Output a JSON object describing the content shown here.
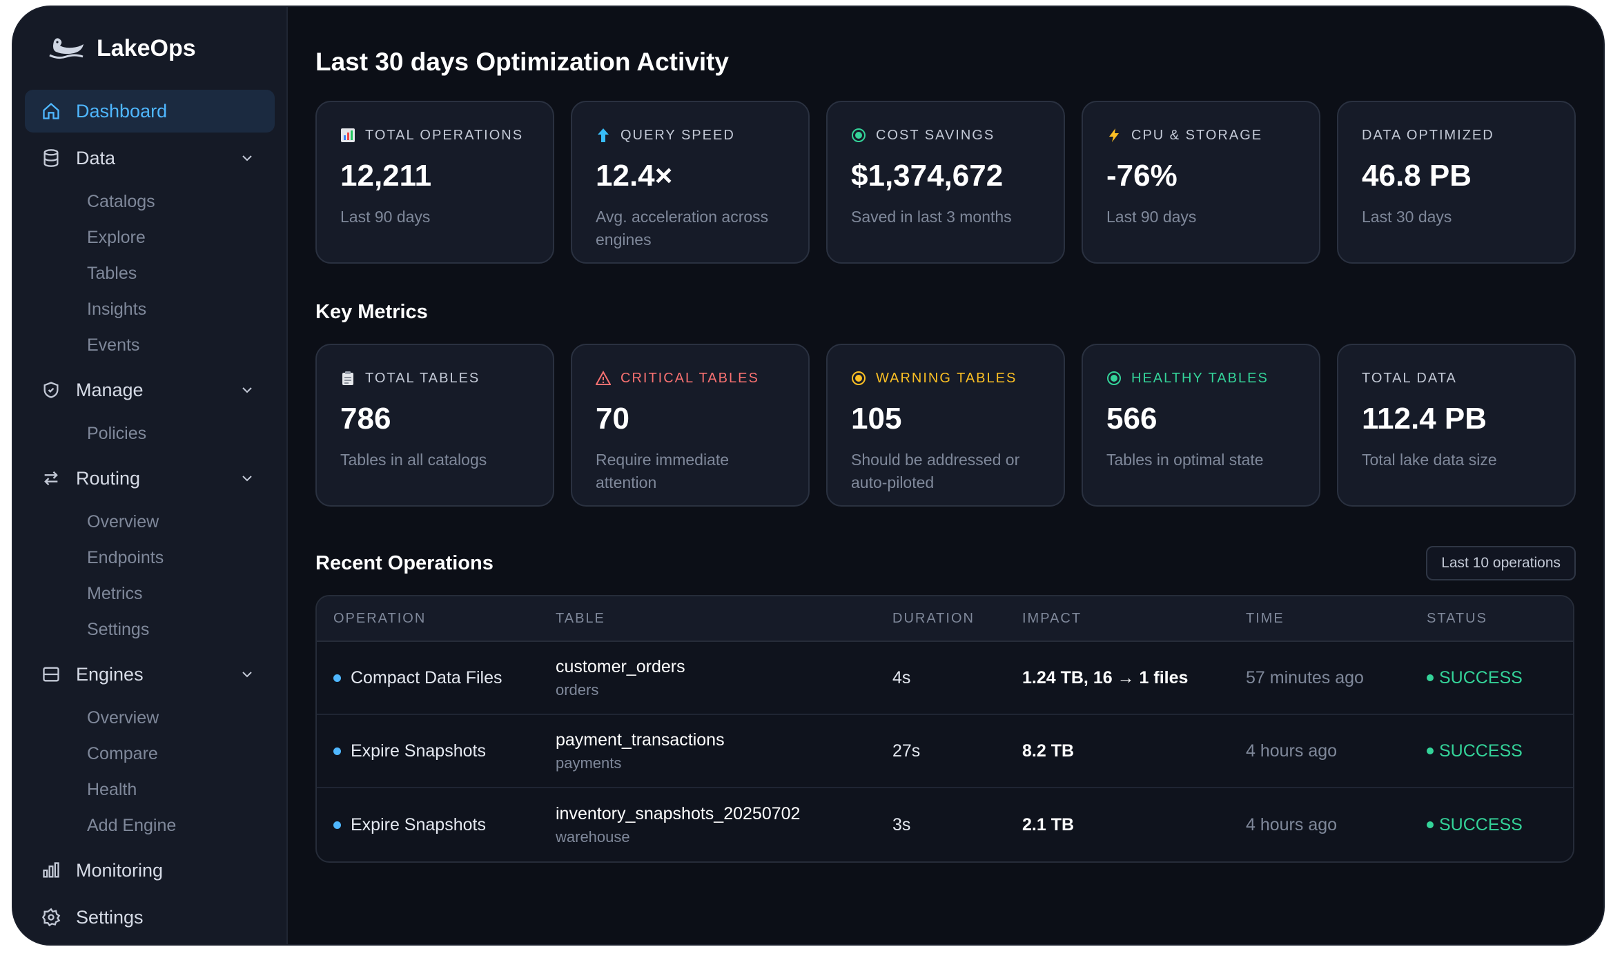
{
  "brand": {
    "name": "LakeOps",
    "logo_icon": "duck-logo-icon"
  },
  "sidebar": {
    "dashboard": "Dashboard",
    "data": {
      "label": "Data",
      "items": [
        "Catalogs",
        "Explore",
        "Tables",
        "Insights",
        "Events"
      ]
    },
    "manage": {
      "label": "Manage",
      "items": [
        "Policies"
      ]
    },
    "routing": {
      "label": "Routing",
      "items": [
        "Overview",
        "Endpoints",
        "Metrics",
        "Settings"
      ]
    },
    "engines": {
      "label": "Engines",
      "items": [
        "Overview",
        "Compare",
        "Health",
        "Add Engine"
      ]
    },
    "monitoring": "Monitoring",
    "settings": "Settings"
  },
  "activity": {
    "title": "Last 30 days Optimization Activity",
    "cards": [
      {
        "label": "TOTAL OPERATIONS",
        "icon": "bar-chart-icon",
        "value": "12,211",
        "sub": "Last 90 days"
      },
      {
        "label": "QUERY SPEED",
        "icon": "arrow-up-icon",
        "value": "12.4×",
        "sub": "Avg. acceleration across engines"
      },
      {
        "label": "COST SAVINGS",
        "icon": "green-dot-icon",
        "value": "$1,374,672",
        "sub": "Saved in last 3 months"
      },
      {
        "label": "CPU & STORAGE",
        "icon": "lightning-icon",
        "value": "-76%",
        "sub": "Last 90 days"
      },
      {
        "label": "DATA OPTIMIZED",
        "icon": "",
        "value": "46.8 PB",
        "sub": "Last 30 days"
      }
    ]
  },
  "metrics": {
    "title": "Key Metrics",
    "cards": [
      {
        "label": "TOTAL TABLES",
        "icon": "clipboard-icon",
        "value": "786",
        "sub": "Tables in all catalogs",
        "color": "#c3c9d6"
      },
      {
        "label": "CRITICAL TABLES",
        "icon": "warning-triangle-icon",
        "value": "70",
        "sub": "Require immediate attention",
        "color": "#f87171"
      },
      {
        "label": "WARNING TABLES",
        "icon": "yellow-dot-icon",
        "value": "105",
        "sub": "Should be addressed or auto-piloted",
        "color": "#fbbf24"
      },
      {
        "label": "HEALTHY TABLES",
        "icon": "green-dot-icon",
        "value": "566",
        "sub": "Tables in optimal state",
        "color": "#34d399"
      },
      {
        "label": "TOTAL DATA",
        "icon": "",
        "value": "112.4 PB",
        "sub": "Total lake data size",
        "color": "#c3c9d6"
      }
    ]
  },
  "operations": {
    "title": "Recent Operations",
    "filter": "Last 10 operations",
    "columns": [
      "OPERATION",
      "TABLE",
      "DURATION",
      "IMPACT",
      "TIME",
      "STATUS"
    ],
    "rows": [
      {
        "operation": "Compact Data Files",
        "table": "customer_orders",
        "schema": "orders",
        "duration": "4s",
        "impact": "1.24 TB, 16 → 1 files",
        "time": "57 minutes ago",
        "status": "SUCCESS"
      },
      {
        "operation": "Expire Snapshots",
        "table": "payment_transactions",
        "schema": "payments",
        "duration": "27s",
        "impact": "8.2 TB",
        "time": "4 hours ago",
        "status": "SUCCESS"
      },
      {
        "operation": "Expire Snapshots",
        "table": "inventory_snapshots_20250702",
        "schema": "warehouse",
        "duration": "3s",
        "impact": "2.1 TB",
        "time": "4 hours ago",
        "status": "SUCCESS"
      }
    ]
  }
}
